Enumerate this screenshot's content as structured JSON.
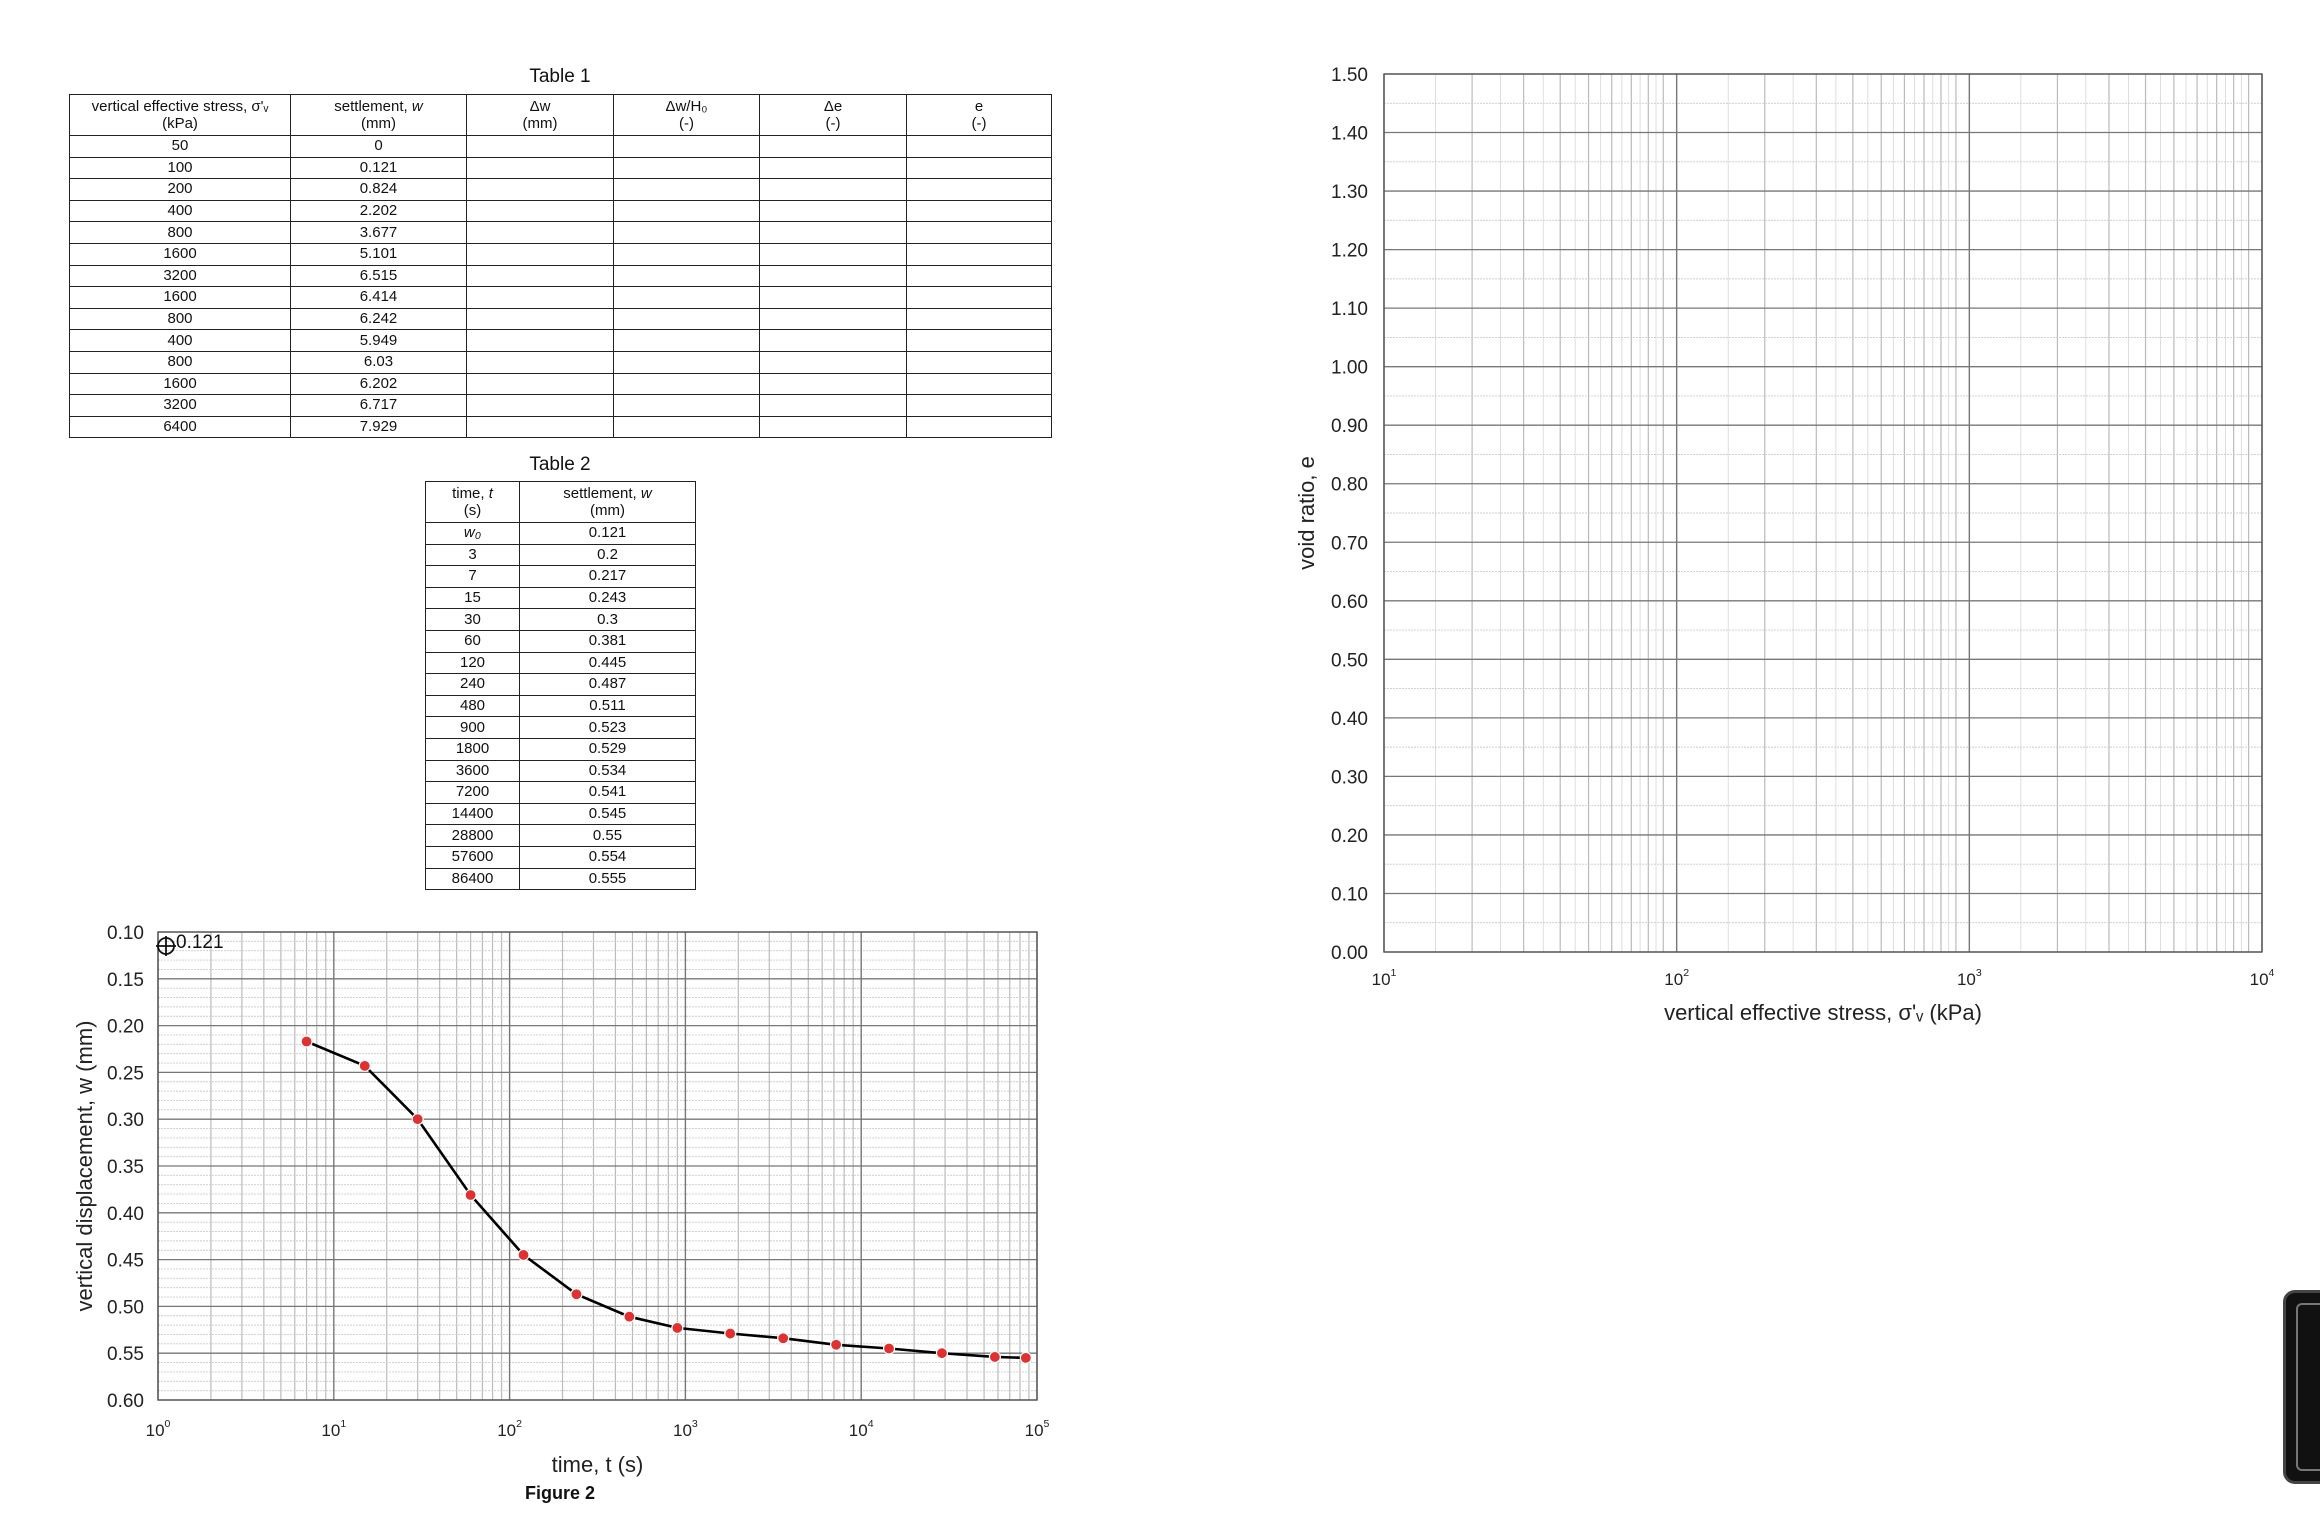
{
  "table1": {
    "caption": "Table 1",
    "headers": [
      {
        "line1": "vertical effective stress, σ'ᵥ",
        "line2": "(kPa)"
      },
      {
        "line1": "settlement, ",
        "line1_italic": "w",
        "line2": "(mm)"
      },
      {
        "line1": "Δw",
        "line2": "(mm)"
      },
      {
        "line1": "Δw/H₀",
        "line2": "(-)"
      },
      {
        "line1": "Δe",
        "line2": "(-)"
      },
      {
        "line1": "e",
        "line2": "(-)"
      }
    ],
    "rows": [
      [
        "50",
        "0",
        "",
        "",
        "",
        ""
      ],
      [
        "100",
        "0.121",
        "",
        "",
        "",
        ""
      ],
      [
        "200",
        "0.824",
        "",
        "",
        "",
        ""
      ],
      [
        "400",
        "2.202",
        "",
        "",
        "",
        ""
      ],
      [
        "800",
        "3.677",
        "",
        "",
        "",
        ""
      ],
      [
        "1600",
        "5.101",
        "",
        "",
        "",
        ""
      ],
      [
        "3200",
        "6.515",
        "",
        "",
        "",
        ""
      ],
      [
        "1600",
        "6.414",
        "",
        "",
        "",
        ""
      ],
      [
        "800",
        "6.242",
        "",
        "",
        "",
        ""
      ],
      [
        "400",
        "5.949",
        "",
        "",
        "",
        ""
      ],
      [
        "800",
        "6.03",
        "",
        "",
        "",
        ""
      ],
      [
        "1600",
        "6.202",
        "",
        "",
        "",
        ""
      ],
      [
        "3200",
        "6.717",
        "",
        "",
        "",
        ""
      ],
      [
        "6400",
        "7.929",
        "",
        "",
        "",
        ""
      ]
    ]
  },
  "table2": {
    "caption": "Table 2",
    "headers": [
      {
        "line1": "time, ",
        "line1_italic": "t",
        "line2": "(s)"
      },
      {
        "line1": "settlement, ",
        "line1_italic": "w",
        "line2": "(mm)"
      }
    ],
    "rows": [
      [
        "w₀",
        "0.121"
      ],
      [
        "3",
        "0.2"
      ],
      [
        "7",
        "0.217"
      ],
      [
        "15",
        "0.243"
      ],
      [
        "30",
        "0.3"
      ],
      [
        "60",
        "0.381"
      ],
      [
        "120",
        "0.445"
      ],
      [
        "240",
        "0.487"
      ],
      [
        "480",
        "0.511"
      ],
      [
        "900",
        "0.523"
      ],
      [
        "1800",
        "0.529"
      ],
      [
        "3600",
        "0.534"
      ],
      [
        "7200",
        "0.541"
      ],
      [
        "14400",
        "0.545"
      ],
      [
        "28800",
        "0.55"
      ],
      [
        "57600",
        "0.554"
      ],
      [
        "86400",
        "0.555"
      ]
    ]
  },
  "figure2_caption": "Figure 2",
  "colors": {
    "marker": "#e03030",
    "line": "#000000",
    "grid_major": "#777777",
    "grid_minor": "#bbbbbb"
  },
  "chart_data": [
    {
      "id": "figure2",
      "type": "line",
      "title": "",
      "xlabel": "time, t (s)",
      "ylabel": "vertical displacement, w (mm)",
      "xscale": "log",
      "xlim": [
        1,
        100000
      ],
      "ylim": [
        0.1,
        0.6
      ],
      "y_inverted": true,
      "xticks": [
        1,
        10,
        100,
        1000,
        10000,
        100000
      ],
      "xtick_labels": [
        {
          "base": "10",
          "exp": "0"
        },
        {
          "base": "10",
          "exp": "1"
        },
        {
          "base": "10",
          "exp": "2"
        },
        {
          "base": "10",
          "exp": "3"
        },
        {
          "base": "10",
          "exp": "4"
        },
        {
          "base": "10",
          "exp": "5"
        }
      ],
      "yticks": [
        0.1,
        0.15,
        0.2,
        0.25,
        0.3,
        0.35,
        0.4,
        0.45,
        0.5,
        0.55,
        0.6
      ],
      "ytick_labels": [
        "0.10",
        "0.15",
        "0.20",
        "0.25",
        "0.30",
        "0.35",
        "0.40",
        "0.45",
        "0.50",
        "0.55",
        "0.60"
      ],
      "grid": true,
      "annotation": {
        "text": "0.121",
        "y": 0.1
      },
      "series": [
        {
          "x": [
            7,
            15,
            30,
            60,
            120,
            240,
            480,
            900,
            1800,
            3600,
            7200,
            14400,
            28800,
            57600,
            86400
          ],
          "y": [
            0.217,
            0.243,
            0.3,
            0.381,
            0.445,
            0.487,
            0.511,
            0.523,
            0.529,
            0.534,
            0.541,
            0.545,
            0.55,
            0.554,
            0.555
          ]
        }
      ]
    },
    {
      "id": "void-ratio-chart",
      "type": "scatter",
      "title": "",
      "xlabel": "vertical effective stress, σ'ᵥ (kPa)",
      "ylabel": "void ratio, e",
      "xscale": "log",
      "xlim": [
        10,
        10000
      ],
      "ylim": [
        0.0,
        1.5
      ],
      "xticks": [
        10,
        100,
        1000,
        10000
      ],
      "xtick_labels": [
        {
          "base": "10",
          "exp": "1"
        },
        {
          "base": "10",
          "exp": "2"
        },
        {
          "base": "10",
          "exp": "3"
        },
        {
          "base": "10",
          "exp": "4"
        }
      ],
      "yticks": [
        0.0,
        0.1,
        0.2,
        0.3,
        0.4,
        0.5,
        0.6,
        0.7,
        0.8,
        0.9,
        1.0,
        1.1,
        1.2,
        1.3,
        1.4,
        1.5
      ],
      "ytick_labels": [
        "0.00",
        "0.10",
        "0.20",
        "0.30",
        "0.40",
        "0.50",
        "0.60",
        "0.70",
        "0.80",
        "0.90",
        "1.00",
        "1.10",
        "1.20",
        "1.30",
        "1.40",
        "1.50"
      ],
      "grid": true,
      "series": []
    }
  ]
}
